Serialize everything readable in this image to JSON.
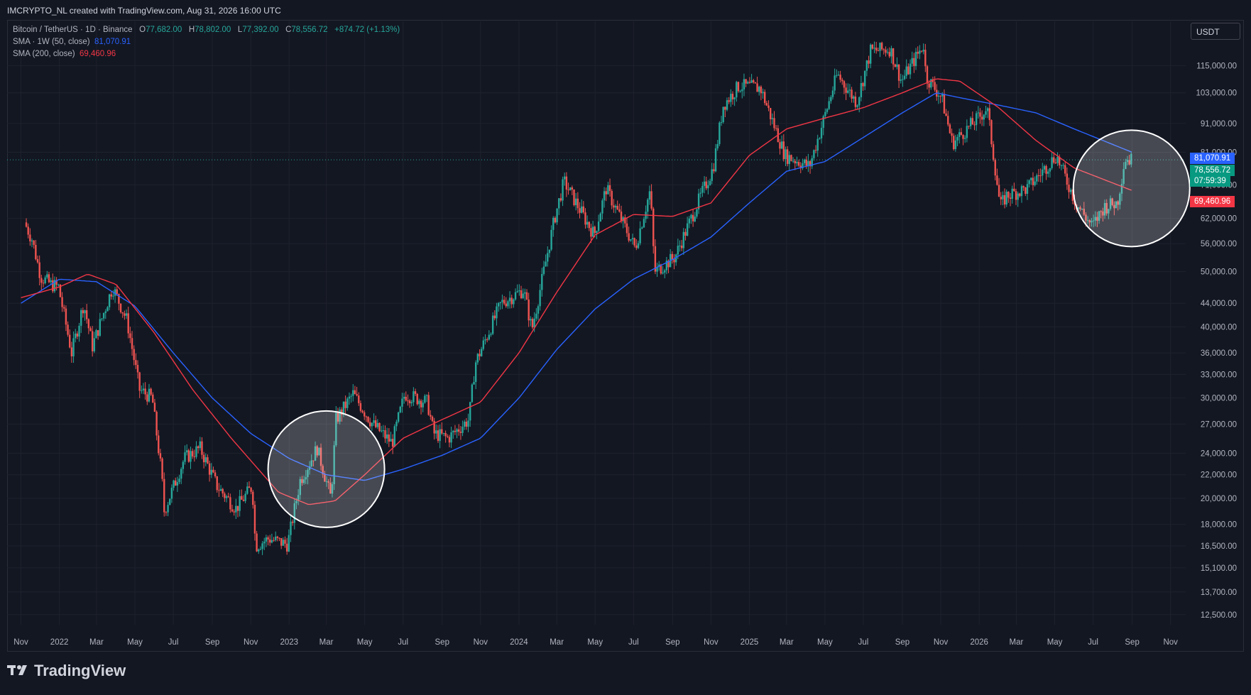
{
  "header": {
    "text": "IMCRYPTO_NL created with TradingView.com, Aug 31, 2026 16:00 UTC"
  },
  "legend": {
    "symbol": "Bitcoin / TetherUS · 1D · Binance",
    "o_label": "O",
    "o": "77,682.00",
    "h_label": "H",
    "h": "78,802.00",
    "l_label": "L",
    "l": "77,392.00",
    "c_label": "C",
    "c": "78,556.72",
    "change": "+874.72 (+1.13%)",
    "sma_weekly": "SMA · 1W (50, close)",
    "sma_weekly_value": "81,070.91",
    "sma_daily": "SMA (200, close)",
    "sma_daily_value": "69,460.96"
  },
  "currency": "USDT",
  "footer": {
    "brand": "TradingView"
  },
  "price_tags": {
    "sma_weekly": "81,070.91",
    "last_price": "78,556.72",
    "countdown": "07:59:39",
    "sma_daily": "69,460.96"
  },
  "colors": {
    "background": "#131722",
    "up": "#26a69a",
    "down": "#ef5350",
    "sma_weekly": "#2962ff",
    "sma_daily": "#f23645",
    "grid": "#1e222d",
    "text": "#b2b5be"
  },
  "chart_data": {
    "type": "candlestick",
    "scale": "log",
    "y_ticks": [
      115000,
      103000,
      91000,
      81000,
      71000,
      62000,
      56000,
      50000,
      44000,
      40000,
      36000,
      33000,
      30000,
      27000,
      24000,
      22000,
      20000,
      18000,
      16500,
      15100,
      13700,
      12500
    ],
    "y_tick_labels": [
      "115,000.00",
      "103,000.00",
      "91,000.00",
      "81,000.00",
      "71,000.00",
      "62,000.00",
      "56,000.00",
      "50,000.00",
      "44,000.00",
      "40,000.00",
      "36,000.00",
      "33,000.00",
      "30,000.00",
      "27,000.00",
      "24,000.00",
      "22,000.00",
      "20,000.00",
      "18,000.00",
      "16,500.00",
      "15,100.00",
      "13,700.00",
      "12,500.00"
    ],
    "x_tick_labels": [
      "Nov",
      "2022",
      "Mar",
      "May",
      "Jul",
      "Sep",
      "Nov",
      "2023",
      "Mar",
      "May",
      "Jul",
      "Sep",
      "Nov",
      "2024",
      "Mar",
      "May",
      "Jul",
      "Sep",
      "Nov",
      "2025",
      "Mar",
      "May",
      "Jul",
      "Sep",
      "Nov",
      "2026",
      "Mar",
      "May",
      "Jul",
      "Sep",
      "Nov"
    ],
    "x_tick_dates": [
      "2021-11-01",
      "2022-01-01",
      "2022-03-01",
      "2022-05-01",
      "2022-07-01",
      "2022-09-01",
      "2022-11-01",
      "2023-01-01",
      "2023-03-01",
      "2023-05-01",
      "2023-07-01",
      "2023-09-01",
      "2023-11-01",
      "2024-01-01",
      "2024-03-01",
      "2024-05-01",
      "2024-07-01",
      "2024-09-01",
      "2024-11-01",
      "2025-01-01",
      "2025-03-01",
      "2025-05-01",
      "2025-07-01",
      "2025-09-01",
      "2025-11-01",
      "2026-01-01",
      "2026-03-01",
      "2026-05-01",
      "2026-07-01",
      "2026-09-01",
      "2026-11-01"
    ],
    "price_path": [
      [
        "2021-11-08",
        61000
      ],
      [
        "2021-11-20",
        57000
      ],
      [
        "2021-12-04",
        49000
      ],
      [
        "2021-12-20",
        47500
      ],
      [
        "2022-01-01",
        47000
      ],
      [
        "2022-01-22",
        36000
      ],
      [
        "2022-02-10",
        44000
      ],
      [
        "2022-02-24",
        37000
      ],
      [
        "2022-03-28",
        47000
      ],
      [
        "2022-04-20",
        41000
      ],
      [
        "2022-05-10",
        31000
      ],
      [
        "2022-05-30",
        30000
      ],
      [
        "2022-06-14",
        22000
      ],
      [
        "2022-06-18",
        19000
      ],
      [
        "2022-07-20",
        23500
      ],
      [
        "2022-08-14",
        24500
      ],
      [
        "2022-09-10",
        21000
      ],
      [
        "2022-10-10",
        19200
      ],
      [
        "2022-11-05",
        21000
      ],
      [
        "2022-11-10",
        16500
      ],
      [
        "2022-12-01",
        17000
      ],
      [
        "2022-12-31",
        16600
      ],
      [
        "2023-01-20",
        21500
      ],
      [
        "2023-02-16",
        24500
      ],
      [
        "2023-03-10",
        20000
      ],
      [
        "2023-03-18",
        27500
      ],
      [
        "2023-04-14",
        30500
      ],
      [
        "2023-05-15",
        27000
      ],
      [
        "2023-06-15",
        25000
      ],
      [
        "2023-07-05",
        30500
      ],
      [
        "2023-08-10",
        29500
      ],
      [
        "2023-08-20",
        26000
      ],
      [
        "2023-09-12",
        25500
      ],
      [
        "2023-10-15",
        27500
      ],
      [
        "2023-10-25",
        34500
      ],
      [
        "2023-12-05",
        44000
      ],
      [
        "2024-01-10",
        46500
      ],
      [
        "2024-01-23",
        39500
      ],
      [
        "2024-02-28",
        62000
      ],
      [
        "2024-03-14",
        72000
      ],
      [
        "2024-05-01",
        58000
      ],
      [
        "2024-05-20",
        70000
      ],
      [
        "2024-07-05",
        55000
      ],
      [
        "2024-07-29",
        69500
      ],
      [
        "2024-08-05",
        50000
      ],
      [
        "2024-09-06",
        53000
      ],
      [
        "2024-10-15",
        67000
      ],
      [
        "2024-11-06",
        76000
      ],
      [
        "2024-11-22",
        98000
      ],
      [
        "2024-12-17",
        106000
      ],
      [
        "2025-01-20",
        105000
      ],
      [
        "2025-02-28",
        80000
      ],
      [
        "2025-04-08",
        76500
      ],
      [
        "2025-05-22",
        111000
      ],
      [
        "2025-06-22",
        99000
      ],
      [
        "2025-07-14",
        122000
      ],
      [
        "2025-08-14",
        123000
      ],
      [
        "2025-09-01",
        108000
      ],
      [
        "2025-10-06",
        125000
      ],
      [
        "2025-10-10",
        110000
      ],
      [
        "2025-11-04",
        101000
      ],
      [
        "2025-11-21",
        84000
      ],
      [
        "2026-01-05",
        94000
      ],
      [
        "2026-01-15",
        97000
      ],
      [
        "2026-02-05",
        65000
      ],
      [
        "2026-02-15",
        68000
      ],
      [
        "2026-03-20",
        70000
      ],
      [
        "2026-05-05",
        80000
      ],
      [
        "2026-06-05",
        66000
      ],
      [
        "2026-07-01",
        60000
      ],
      [
        "2026-07-20",
        65000
      ],
      [
        "2026-08-10",
        66000
      ],
      [
        "2026-08-22",
        79000
      ],
      [
        "2026-08-31",
        78556.72
      ]
    ],
    "sma_weekly_path": [
      [
        "2021-11-01",
        44000
      ],
      [
        "2022-01-01",
        48500
      ],
      [
        "2022-03-01",
        48000
      ],
      [
        "2022-05-01",
        43500
      ],
      [
        "2022-07-01",
        36000
      ],
      [
        "2022-09-01",
        30000
      ],
      [
        "2022-11-01",
        26000
      ],
      [
        "2023-01-01",
        23500
      ],
      [
        "2023-03-01",
        22000
      ],
      [
        "2023-05-01",
        21500
      ],
      [
        "2023-07-01",
        22500
      ],
      [
        "2023-09-01",
        23800
      ],
      [
        "2023-11-01",
        25500
      ],
      [
        "2024-01-01",
        30000
      ],
      [
        "2024-03-01",
        36500
      ],
      [
        "2024-05-01",
        43000
      ],
      [
        "2024-07-01",
        48500
      ],
      [
        "2024-09-01",
        52500
      ],
      [
        "2024-11-01",
        57500
      ],
      [
        "2025-01-01",
        66000
      ],
      [
        "2025-03-01",
        75000
      ],
      [
        "2025-05-01",
        78000
      ],
      [
        "2025-07-01",
        86000
      ],
      [
        "2025-09-01",
        95000
      ],
      [
        "2025-10-25",
        103000
      ],
      [
        "2025-12-01",
        101000
      ],
      [
        "2026-02-01",
        98000
      ],
      [
        "2026-04-01",
        95000
      ],
      [
        "2026-06-01",
        89000
      ],
      [
        "2026-08-31",
        81070.91
      ]
    ],
    "sma_daily_path": [
      [
        "2021-11-01",
        45000
      ],
      [
        "2022-01-01",
        47000
      ],
      [
        "2022-02-15",
        49500
      ],
      [
        "2022-04-01",
        47500
      ],
      [
        "2022-06-01",
        39000
      ],
      [
        "2022-08-01",
        31000
      ],
      [
        "2022-10-01",
        25500
      ],
      [
        "2022-12-15",
        20500
      ],
      [
        "2023-02-01",
        19500
      ],
      [
        "2023-03-15",
        19800
      ],
      [
        "2023-05-01",
        22000
      ],
      [
        "2023-07-01",
        25500
      ],
      [
        "2023-09-01",
        27500
      ],
      [
        "2023-11-01",
        29500
      ],
      [
        "2024-01-01",
        36000
      ],
      [
        "2024-03-01",
        46000
      ],
      [
        "2024-05-01",
        58000
      ],
      [
        "2024-07-01",
        63000
      ],
      [
        "2024-09-01",
        62500
      ],
      [
        "2024-11-01",
        66000
      ],
      [
        "2025-01-01",
        80000
      ],
      [
        "2025-03-01",
        89000
      ],
      [
        "2025-05-01",
        93000
      ],
      [
        "2025-07-01",
        97000
      ],
      [
        "2025-09-01",
        103000
      ],
      [
        "2025-10-25",
        109000
      ],
      [
        "2025-12-01",
        108000
      ],
      [
        "2026-02-01",
        97000
      ],
      [
        "2026-04-01",
        85000
      ],
      [
        "2026-06-01",
        76000
      ],
      [
        "2026-08-31",
        69460.96
      ]
    ],
    "annotations": [
      {
        "shape": "circle",
        "center_date": "2023-03-01",
        "center_price": 22500
      },
      {
        "shape": "circle",
        "center_date": "2026-08-31",
        "center_price": 70000
      }
    ]
  }
}
